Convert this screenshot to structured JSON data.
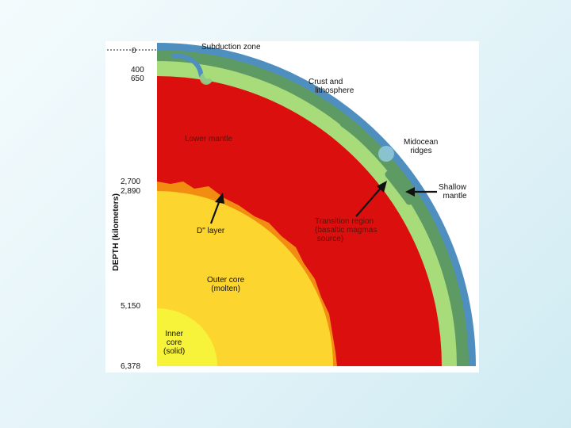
{
  "diagram": {
    "axis_label": "DEPTH (kilometers)",
    "depth_ticks": [
      "0",
      "400",
      "650",
      "2,700",
      "2,890",
      "5,150",
      "6,378"
    ],
    "labels": {
      "subduction_zone": "Subduction zone",
      "crust_lithosphere": "Crust and\n   lithosphere",
      "midocean_ridges": "Midocean\n   ridges",
      "shallow_mantle": "Shallow\n  mantle",
      "lower_mantle": "Lower mantle",
      "transition_region": "Transition region\n(basaltic magmas\n source)",
      "d_layer": "D\" layer",
      "outer_core": "Outer core\n(molten)",
      "inner_core": "Inner\ncore\n(solid)"
    },
    "colors": {
      "crust": "#4f8fbf",
      "lithosphere": "#5e9a63",
      "shallow_mantle": "#a8dc7a",
      "lower_mantle": "#dc0f0f",
      "d_layer": "#f28d12",
      "outer_core": "#fcd62e",
      "inner_core": "#f7f23a"
    }
  }
}
